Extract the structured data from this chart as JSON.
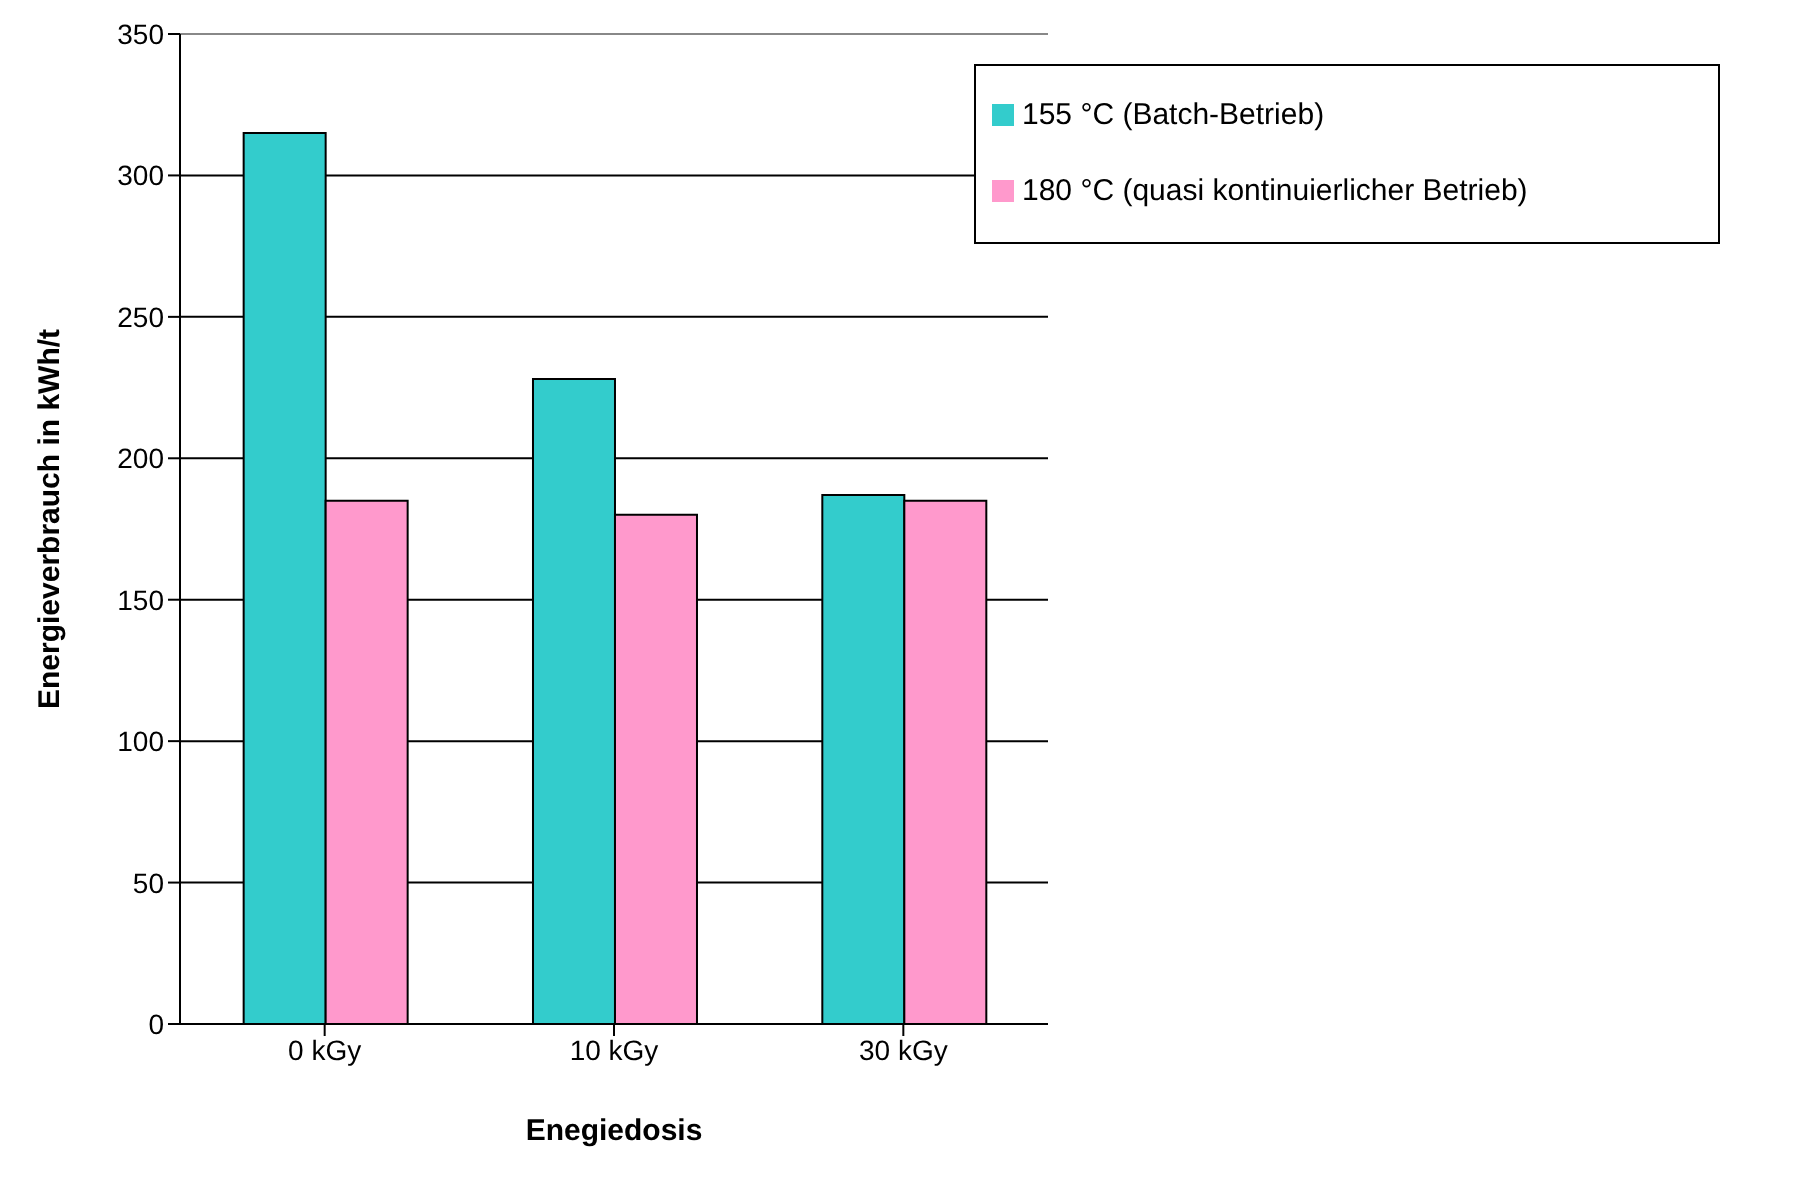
{
  "chart_data": {
    "type": "bar",
    "xlabel": "Enegiedosis",
    "ylabel": "Energieverbrauch in kWh/t",
    "categories": [
      "0 kGy",
      "10 kGy",
      "30 kGy"
    ],
    "series": [
      {
        "name": "155 °C (Batch-Betrieb)",
        "color": "#33cccc",
        "values": [
          315,
          228,
          187
        ]
      },
      {
        "name": "180 °C (quasi kontinuierlicher Betrieb)",
        "color": "#ff99cc",
        "values": [
          185,
          180,
          185
        ]
      }
    ],
    "ylim": [
      0,
      350
    ],
    "yticks": [
      0,
      50,
      100,
      150,
      200,
      250,
      300,
      350
    ],
    "grid": "y",
    "legend": "top right"
  }
}
